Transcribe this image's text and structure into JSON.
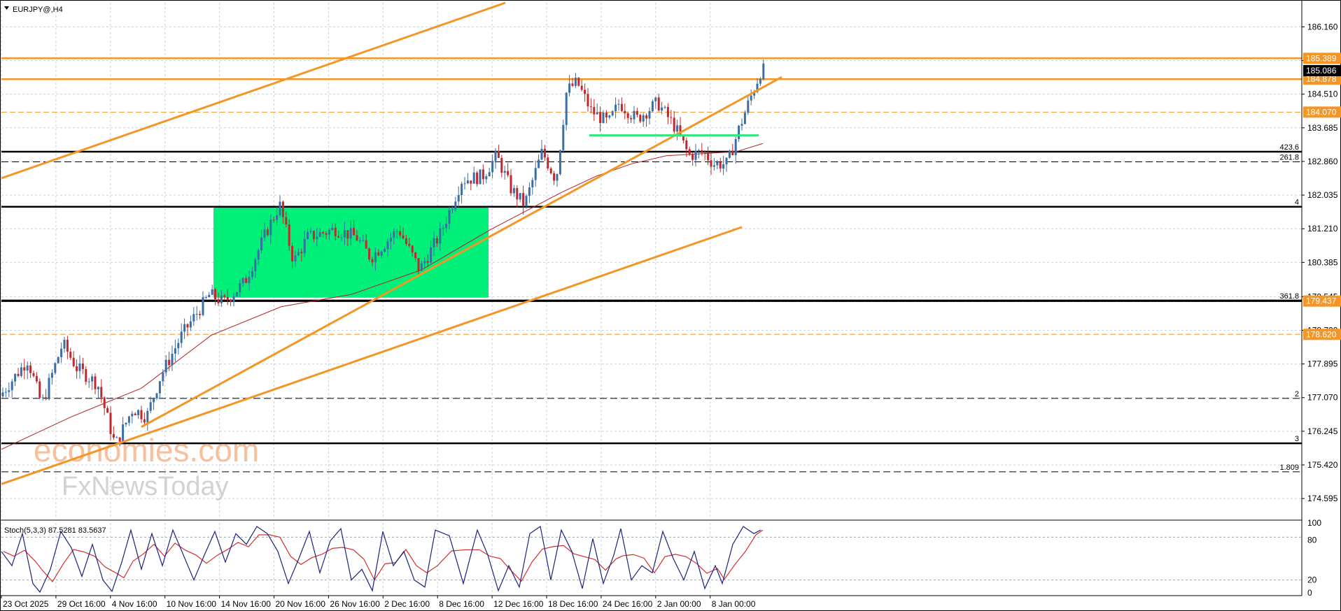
{
  "window": {
    "symbol_label": "EURJPY@,H4",
    "indicator_label": "Stoch(5,3,3) 87.5281 83.5637"
  },
  "watermark": {
    "line1": "economies.com",
    "line2": "FxNewsToday"
  },
  "colors": {
    "background": "#ffffff",
    "grid": "#c8d2dc",
    "bull": "#3a6ea5",
    "bear": "#c0282d",
    "ma": "#b22222",
    "trendline": "#f39625",
    "level_tag": "#f39625",
    "current_tag": "#000000",
    "zone": "#00f07a",
    "support_green": "#2ee87a",
    "stoch_main": "#1a237e",
    "stoch_signal": "#d32f2f",
    "watermark": "#f6b58a"
  },
  "chart_data": {
    "type": "candlestick",
    "symbol": "EURJPY",
    "timeframe": "H4",
    "ylim": [
      174.1,
      186.75
    ],
    "price_axis_ticks": [
      "186.160",
      "185.335",
      "184.510",
      "183.685",
      "182.860",
      "182.035",
      "181.210",
      "180.385",
      "179.545",
      "178.720",
      "177.895",
      "177.070",
      "176.245",
      "175.420",
      "174.595"
    ],
    "time_axis_labels": [
      "23 Oct 2025",
      "29 Oct 16:00",
      "4 Nov 16:00",
      "10 Nov 16:00",
      "14 Nov 16:00",
      "20 Nov 16:00",
      "26 Nov 16:00",
      "2 Dec 16:00",
      "8 Dec 16:00",
      "12 Dec 16:00",
      "18 Dec 16:00",
      "24 Dec 16:00",
      "2 Jan 00:00",
      "8 Jan 00:00"
    ],
    "price_path": [
      [
        0,
        177.1
      ],
      [
        40,
        178.0
      ],
      [
        60,
        176.9
      ],
      [
        90,
        178.4
      ],
      [
        110,
        177.8
      ],
      [
        140,
        177.4
      ],
      [
        165,
        175.9
      ],
      [
        190,
        176.8
      ],
      [
        210,
        176.6
      ],
      [
        230,
        177.6
      ],
      [
        260,
        178.6
      ],
      [
        300,
        179.6
      ],
      [
        320,
        179.4
      ],
      [
        350,
        179.9
      ],
      [
        380,
        181.1
      ],
      [
        400,
        181.8
      ],
      [
        420,
        180.4
      ],
      [
        440,
        181.0
      ],
      [
        480,
        181.2
      ],
      [
        510,
        181.0
      ],
      [
        530,
        180.5
      ],
      [
        570,
        181.2
      ],
      [
        600,
        180.2
      ],
      [
        630,
        181.1
      ],
      [
        660,
        182.4
      ],
      [
        690,
        182.5
      ],
      [
        710,
        183.0
      ],
      [
        730,
        182.2
      ],
      [
        750,
        181.8
      ],
      [
        775,
        183.1
      ],
      [
        795,
        182.4
      ],
      [
        810,
        184.6
      ],
      [
        825,
        184.8
      ],
      [
        845,
        184.1
      ],
      [
        870,
        183.8
      ],
      [
        885,
        184.3
      ],
      [
        910,
        183.9
      ],
      [
        940,
        184.3
      ],
      [
        965,
        183.7
      ],
      [
        985,
        183.0
      ],
      [
        1005,
        183.1
      ],
      [
        1020,
        182.8
      ],
      [
        1040,
        182.8
      ],
      [
        1055,
        183.6
      ],
      [
        1070,
        184.3
      ],
      [
        1088,
        185.1
      ]
    ],
    "moving_average_path": [
      [
        0,
        175.8
      ],
      [
        100,
        176.6
      ],
      [
        200,
        177.3
      ],
      [
        300,
        178.6
      ],
      [
        400,
        179.3
      ],
      [
        500,
        179.6
      ],
      [
        600,
        180.2
      ],
      [
        700,
        181.2
      ],
      [
        800,
        182.1
      ],
      [
        850,
        182.5
      ],
      [
        900,
        182.8
      ],
      [
        950,
        183.0
      ],
      [
        1000,
        183.05
      ],
      [
        1050,
        183.1
      ],
      [
        1088,
        183.3
      ]
    ],
    "horizontal_levels": [
      {
        "price": 185.389,
        "label": "185.389",
        "style": "solid-orange"
      },
      {
        "price": 184.878,
        "label": "184.878",
        "style": "solid-orange"
      },
      {
        "price": 184.07,
        "label": "184.070",
        "style": "dashed-orange"
      },
      {
        "price": 179.437,
        "label": "179.437",
        "style": "solid-black"
      },
      {
        "price": 178.62,
        "label": "178.620",
        "style": "dashed-orange"
      }
    ],
    "current_price": {
      "price": 185.086,
      "label": "185.086"
    },
    "fibo_levels": [
      {
        "price": 183.1,
        "label": "423.6",
        "style": "solid"
      },
      {
        "price": 182.85,
        "label": "261.8",
        "style": "dashed"
      },
      {
        "price": 181.75,
        "label": "4",
        "style": "solid"
      },
      {
        "price": 179.45,
        "label": "361.8",
        "style": "solid"
      },
      {
        "price": 177.05,
        "label": "2",
        "style": "dashed"
      },
      {
        "price": 175.95,
        "label": "3",
        "style": "solid"
      },
      {
        "price": 175.25,
        "label": "1.809",
        "style": "dashed"
      }
    ],
    "trendlines": [
      {
        "from": [
          0,
          182.45
        ],
        "to": [
          720,
          186.75
        ]
      },
      {
        "from": [
          200,
          176.35
        ],
        "to": [
          1115,
          184.93
        ]
      },
      {
        "from": [
          0,
          174.95
        ],
        "to": [
          1058,
          181.25
        ]
      }
    ],
    "consolidation_zone": {
      "x_from": 303,
      "x_to": 696,
      "price_top": 181.75,
      "price_bottom": 179.52
    },
    "support_segment": {
      "x_from": 840,
      "x_to": 1082,
      "price": 183.5
    },
    "stochastic": {
      "k": 87.5281,
      "d": 83.5637,
      "scale_labels": [
        "100",
        "80",
        "20",
        "0"
      ],
      "k_path": [
        [
          0,
          60
        ],
        [
          15,
          40
        ],
        [
          30,
          85
        ],
        [
          45,
          15
        ],
        [
          55,
          3
        ],
        [
          70,
          35
        ],
        [
          85,
          88
        ],
        [
          100,
          65
        ],
        [
          115,
          25
        ],
        [
          130,
          70
        ],
        [
          145,
          20
        ],
        [
          158,
          4
        ],
        [
          172,
          45
        ],
        [
          185,
          90
        ],
        [
          200,
          35
        ],
        [
          215,
          85
        ],
        [
          230,
          40
        ],
        [
          245,
          90
        ],
        [
          260,
          55
        ],
        [
          275,
          20
        ],
        [
          290,
          55
        ],
        [
          305,
          88
        ],
        [
          320,
          45
        ],
        [
          335,
          85
        ],
        [
          350,
          70
        ],
        [
          365,
          95
        ],
        [
          380,
          85
        ],
        [
          395,
          60
        ],
        [
          410,
          15
        ],
        [
          425,
          50
        ],
        [
          440,
          88
        ],
        [
          455,
          30
        ],
        [
          470,
          75
        ],
        [
          485,
          92
        ],
        [
          500,
          20
        ],
        [
          515,
          35
        ],
        [
          530,
          5
        ],
        [
          545,
          88
        ],
        [
          560,
          40
        ],
        [
          575,
          60
        ],
        [
          590,
          20
        ],
        [
          605,
          10
        ],
        [
          620,
          90
        ],
        [
          640,
          82
        ],
        [
          660,
          15
        ],
        [
          680,
          90
        ],
        [
          695,
          55
        ],
        [
          710,
          5
        ],
        [
          725,
          40
        ],
        [
          740,
          10
        ],
        [
          755,
          85
        ],
        [
          770,
          95
        ],
        [
          785,
          20
        ],
        [
          800,
          90
        ],
        [
          815,
          60
        ],
        [
          830,
          8
        ],
        [
          845,
          78
        ],
        [
          860,
          15
        ],
        [
          875,
          55
        ],
        [
          885,
          92
        ],
        [
          900,
          20
        ],
        [
          915,
          40
        ],
        [
          930,
          30
        ],
        [
          945,
          88
        ],
        [
          960,
          50
        ],
        [
          975,
          20
        ],
        [
          990,
          60
        ],
        [
          1005,
          8
        ],
        [
          1020,
          40
        ],
        [
          1030,
          15
        ],
        [
          1045,
          70
        ],
        [
          1060,
          95
        ],
        [
          1075,
          85
        ],
        [
          1085,
          90
        ]
      ]
    }
  }
}
